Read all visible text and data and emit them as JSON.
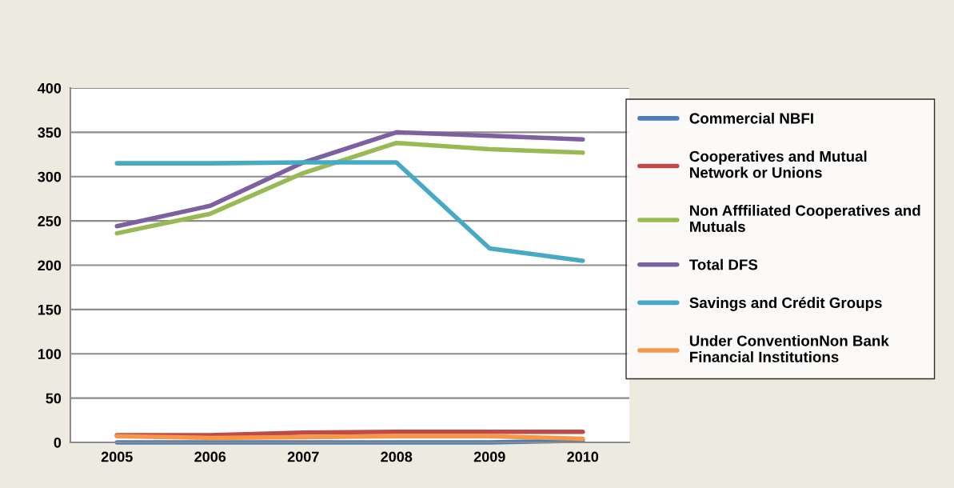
{
  "chart_data": {
    "type": "line",
    "categories": [
      "2005",
      "2006",
      "2007",
      "2008",
      "2009",
      "2010"
    ],
    "series": [
      {
        "name": "Commercial NBFI",
        "color": "#4a7ebb",
        "values": [
          0,
          0,
          0,
          0,
          0,
          2
        ]
      },
      {
        "name": "Cooperatives and Mutual\nNetwork or Unions",
        "color": "#be4b48",
        "values": [
          8,
          8,
          11,
          12,
          12,
          12
        ]
      },
      {
        "name": "Non Afffiliated Cooperatives and\nMutuals",
        "color": "#98b954",
        "values": [
          236,
          258,
          304,
          338,
          331,
          327
        ]
      },
      {
        "name": "Total DFS",
        "color": "#7d60a0",
        "values": [
          244,
          267,
          316,
          350,
          346,
          342
        ]
      },
      {
        "name": "Savings and Crédit Groups",
        "color": "#46aac5",
        "values": [
          315,
          315,
          316,
          316,
          219,
          205
        ]
      },
      {
        "name": "Under ConventionNon Bank\nFinancial Institutions",
        "color": "#f79646",
        "values": [
          7,
          5,
          6,
          7,
          7,
          4
        ]
      }
    ],
    "ylim": [
      0,
      400
    ],
    "yticks": [
      0,
      50,
      100,
      150,
      200,
      250,
      300,
      350,
      400
    ],
    "grid": "y",
    "legend": "right",
    "marker": "none",
    "line_style": "solid"
  }
}
